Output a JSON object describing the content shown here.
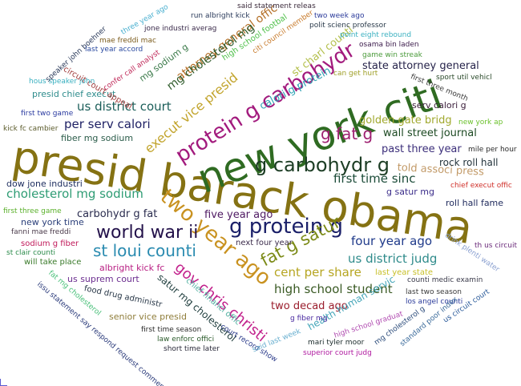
{
  "words": [
    {
      "text": "presid barack obama",
      "color": "#857213"
    },
    {
      "text": "new york citi",
      "color": "#2f6b22"
    },
    {
      "text": "protein g carbohydr",
      "color": "#a21a7d"
    },
    {
      "text": "g carbohydr g",
      "color": "#1c3d24"
    },
    {
      "text": "two year ago",
      "color": "#c99220"
    },
    {
      "text": "g protein g",
      "color": "#1b2069"
    },
    {
      "text": "world war ii",
      "color": "#23114a"
    },
    {
      "text": "st loui counti",
      "color": "#2a8bb0"
    },
    {
      "text": "gov chris christi",
      "color": "#c2218c"
    },
    {
      "text": "fat g satur",
      "color": "#7b8a16"
    },
    {
      "text": "g fat g",
      "color": "#9e2070"
    },
    {
      "text": "execut vice presid",
      "color": "#c2a42c"
    },
    {
      "text": "us district court",
      "color": "#1c5f5a"
    },
    {
      "text": "cholesterol mg sodium",
      "color": "#2e9c74"
    },
    {
      "text": "high school student",
      "color": "#3a5a24"
    },
    {
      "text": "four year ago",
      "color": "#1f3a8a"
    },
    {
      "text": "us district judg",
      "color": "#2f8b8b"
    },
    {
      "text": "per serv calori",
      "color": "#1d1f63"
    },
    {
      "text": "cent per share",
      "color": "#b6a521"
    },
    {
      "text": "first time sinc",
      "color": "#1c4c39"
    },
    {
      "text": "calori g protein",
      "color": "#2ca2b3"
    },
    {
      "text": "past three year",
      "color": "#3b2e7a"
    },
    {
      "text": "wall street journal",
      "color": "#1d4a23"
    },
    {
      "text": "golden gate bridg",
      "color": "#a0a82d"
    },
    {
      "text": "attorney general offic",
      "color": "#b36d24"
    },
    {
      "text": "mg cholesterol mg",
      "color": "#2f5b2b"
    },
    {
      "text": "st charl counti",
      "color": "#b4c04d"
    },
    {
      "text": "state attorney general",
      "color": "#26234a"
    },
    {
      "text": "two decad ago",
      "color": "#9a1d2c"
    },
    {
      "text": "carbohydr g fat",
      "color": "#2b2d4f"
    },
    {
      "text": "five year ago",
      "color": "#4f1a63"
    },
    {
      "text": "told associ press",
      "color": "#c29a68"
    },
    {
      "text": "rock roll hall",
      "color": "#25353d"
    },
    {
      "text": "satur mg cholesterol",
      "color": "#224040"
    },
    {
      "text": "health human servic",
      "color": "#45a6b9"
    },
    {
      "text": "dow jone industri",
      "color": "#1f2f60"
    },
    {
      "text": "serv calori g",
      "color": "#3a1d3a"
    },
    {
      "text": "roll hall fame",
      "color": "#1f2a5c"
    },
    {
      "text": "g satur mg",
      "color": "#3b2d8a"
    },
    {
      "text": "us suprem court",
      "color": "#6b2d8f"
    },
    {
      "text": "albright kick fc",
      "color": "#b81e82"
    },
    {
      "text": "new york time",
      "color": "#2b3f7a"
    },
    {
      "text": "mg sodium g",
      "color": "#3b7a4a"
    },
    {
      "text": "fiber mg sodium",
      "color": "#2b5c4a"
    },
    {
      "text": "presid chief execut",
      "color": "#2e8c8c"
    },
    {
      "text": "senior vice presid",
      "color": "#8f7d3a"
    },
    {
      "text": "next four year",
      "color": "#3a2a4a"
    },
    {
      "text": "last year state",
      "color": "#c8c02a"
    },
    {
      "text": "will take place",
      "color": "#3a7a2a"
    },
    {
      "text": "circuit court appeal",
      "color": "#a03a3a"
    },
    {
      "text": "food drug administr",
      "color": "#2b3a4a"
    },
    {
      "text": "chief financi offic",
      "color": "#4fb0a0"
    },
    {
      "text": "sodium g fiber",
      "color": "#c01a5a"
    },
    {
      "text": "high school footbal",
      "color": "#4fc04a"
    },
    {
      "text": "citi council member",
      "color": "#c87a2a"
    },
    {
      "text": "mae freddi mac",
      "color": "#7a5a1a"
    },
    {
      "text": "jone industri averag",
      "color": "#3a2a4a"
    },
    {
      "text": "run albright kick",
      "color": "#2a3a5a"
    },
    {
      "text": "said statement releas",
      "color": "#3a2a3a"
    },
    {
      "text": "two week ago",
      "color": "#2a3a9a"
    },
    {
      "text": "polit scienc professor",
      "color": "#2a3a4a"
    },
    {
      "text": "point eight rebound",
      "color": "#3ab0c0"
    },
    {
      "text": "osama bin laden",
      "color": "#3a1a4a"
    },
    {
      "text": "game win streak",
      "color": "#4a9a3a"
    },
    {
      "text": "can get hurt",
      "color": "#a0a02a"
    },
    {
      "text": "first three month",
      "color": "#3a3a3a"
    },
    {
      "text": "sport util vehicl",
      "color": "#2a4a2a"
    },
    {
      "text": "new york ap",
      "color": "#6ac02a"
    },
    {
      "text": "mile per hour",
      "color": "#2a2a2a"
    },
    {
      "text": "chief execut offic",
      "color": "#d0302a"
    },
    {
      "text": "th us circuit",
      "color": "#6a2a7a"
    },
    {
      "text": "drink plenti water",
      "color": "#8aa0d0"
    },
    {
      "text": "counti medic examin",
      "color": "#3a3a4a"
    },
    {
      "text": "last two season",
      "color": "#3a3a3a"
    },
    {
      "text": "los angel counti",
      "color": "#2a3a9a"
    },
    {
      "text": "us circuit court",
      "color": "#2a5a9a"
    },
    {
      "text": "standard poor index",
      "color": "#3a6a9a"
    },
    {
      "text": "mg cholesterol g",
      "color": "#2a4a7a"
    },
    {
      "text": "high school graduat",
      "color": "#b04ab0"
    },
    {
      "text": "superior court judg",
      "color": "#b01aa0"
    },
    {
      "text": "mari tyler moor",
      "color": "#1a2a2a"
    },
    {
      "text": "g fiber mg",
      "color": "#4a2aa0"
    },
    {
      "text": "court record show",
      "color": "#2a3a8a"
    },
    {
      "text": "said last week",
      "color": "#6ab0d0"
    },
    {
      "text": "short time later",
      "color": "#2a2a3a"
    },
    {
      "text": "law enforc offici",
      "color": "#2a5a2a"
    },
    {
      "text": "first time season",
      "color": "#2a2a2a"
    },
    {
      "text": "issu statement say respond request comment",
      "color": "#2a3a7a"
    },
    {
      "text": "fat mg cholesterol",
      "color": "#4ac07a"
    },
    {
      "text": "fanni mae freddi",
      "color": "#4a3a4a"
    },
    {
      "text": "st clair counti",
      "color": "#2a8a4a"
    },
    {
      "text": "first three game",
      "color": "#5ab02a"
    },
    {
      "text": "kick fc cambier",
      "color": "#5a5a2a"
    },
    {
      "text": "first two game",
      "color": "#2a3aa0"
    },
    {
      "text": "hous speaker john",
      "color": "#3ab0c0"
    },
    {
      "text": "speaker john boehner",
      "color": "#2a3a5a"
    },
    {
      "text": "three year ago",
      "color": "#4ab0d0"
    },
    {
      "text": "last year accord",
      "color": "#2a4aa0"
    },
    {
      "text": "confer call analyst",
      "color": "#c02a5a"
    }
  ]
}
